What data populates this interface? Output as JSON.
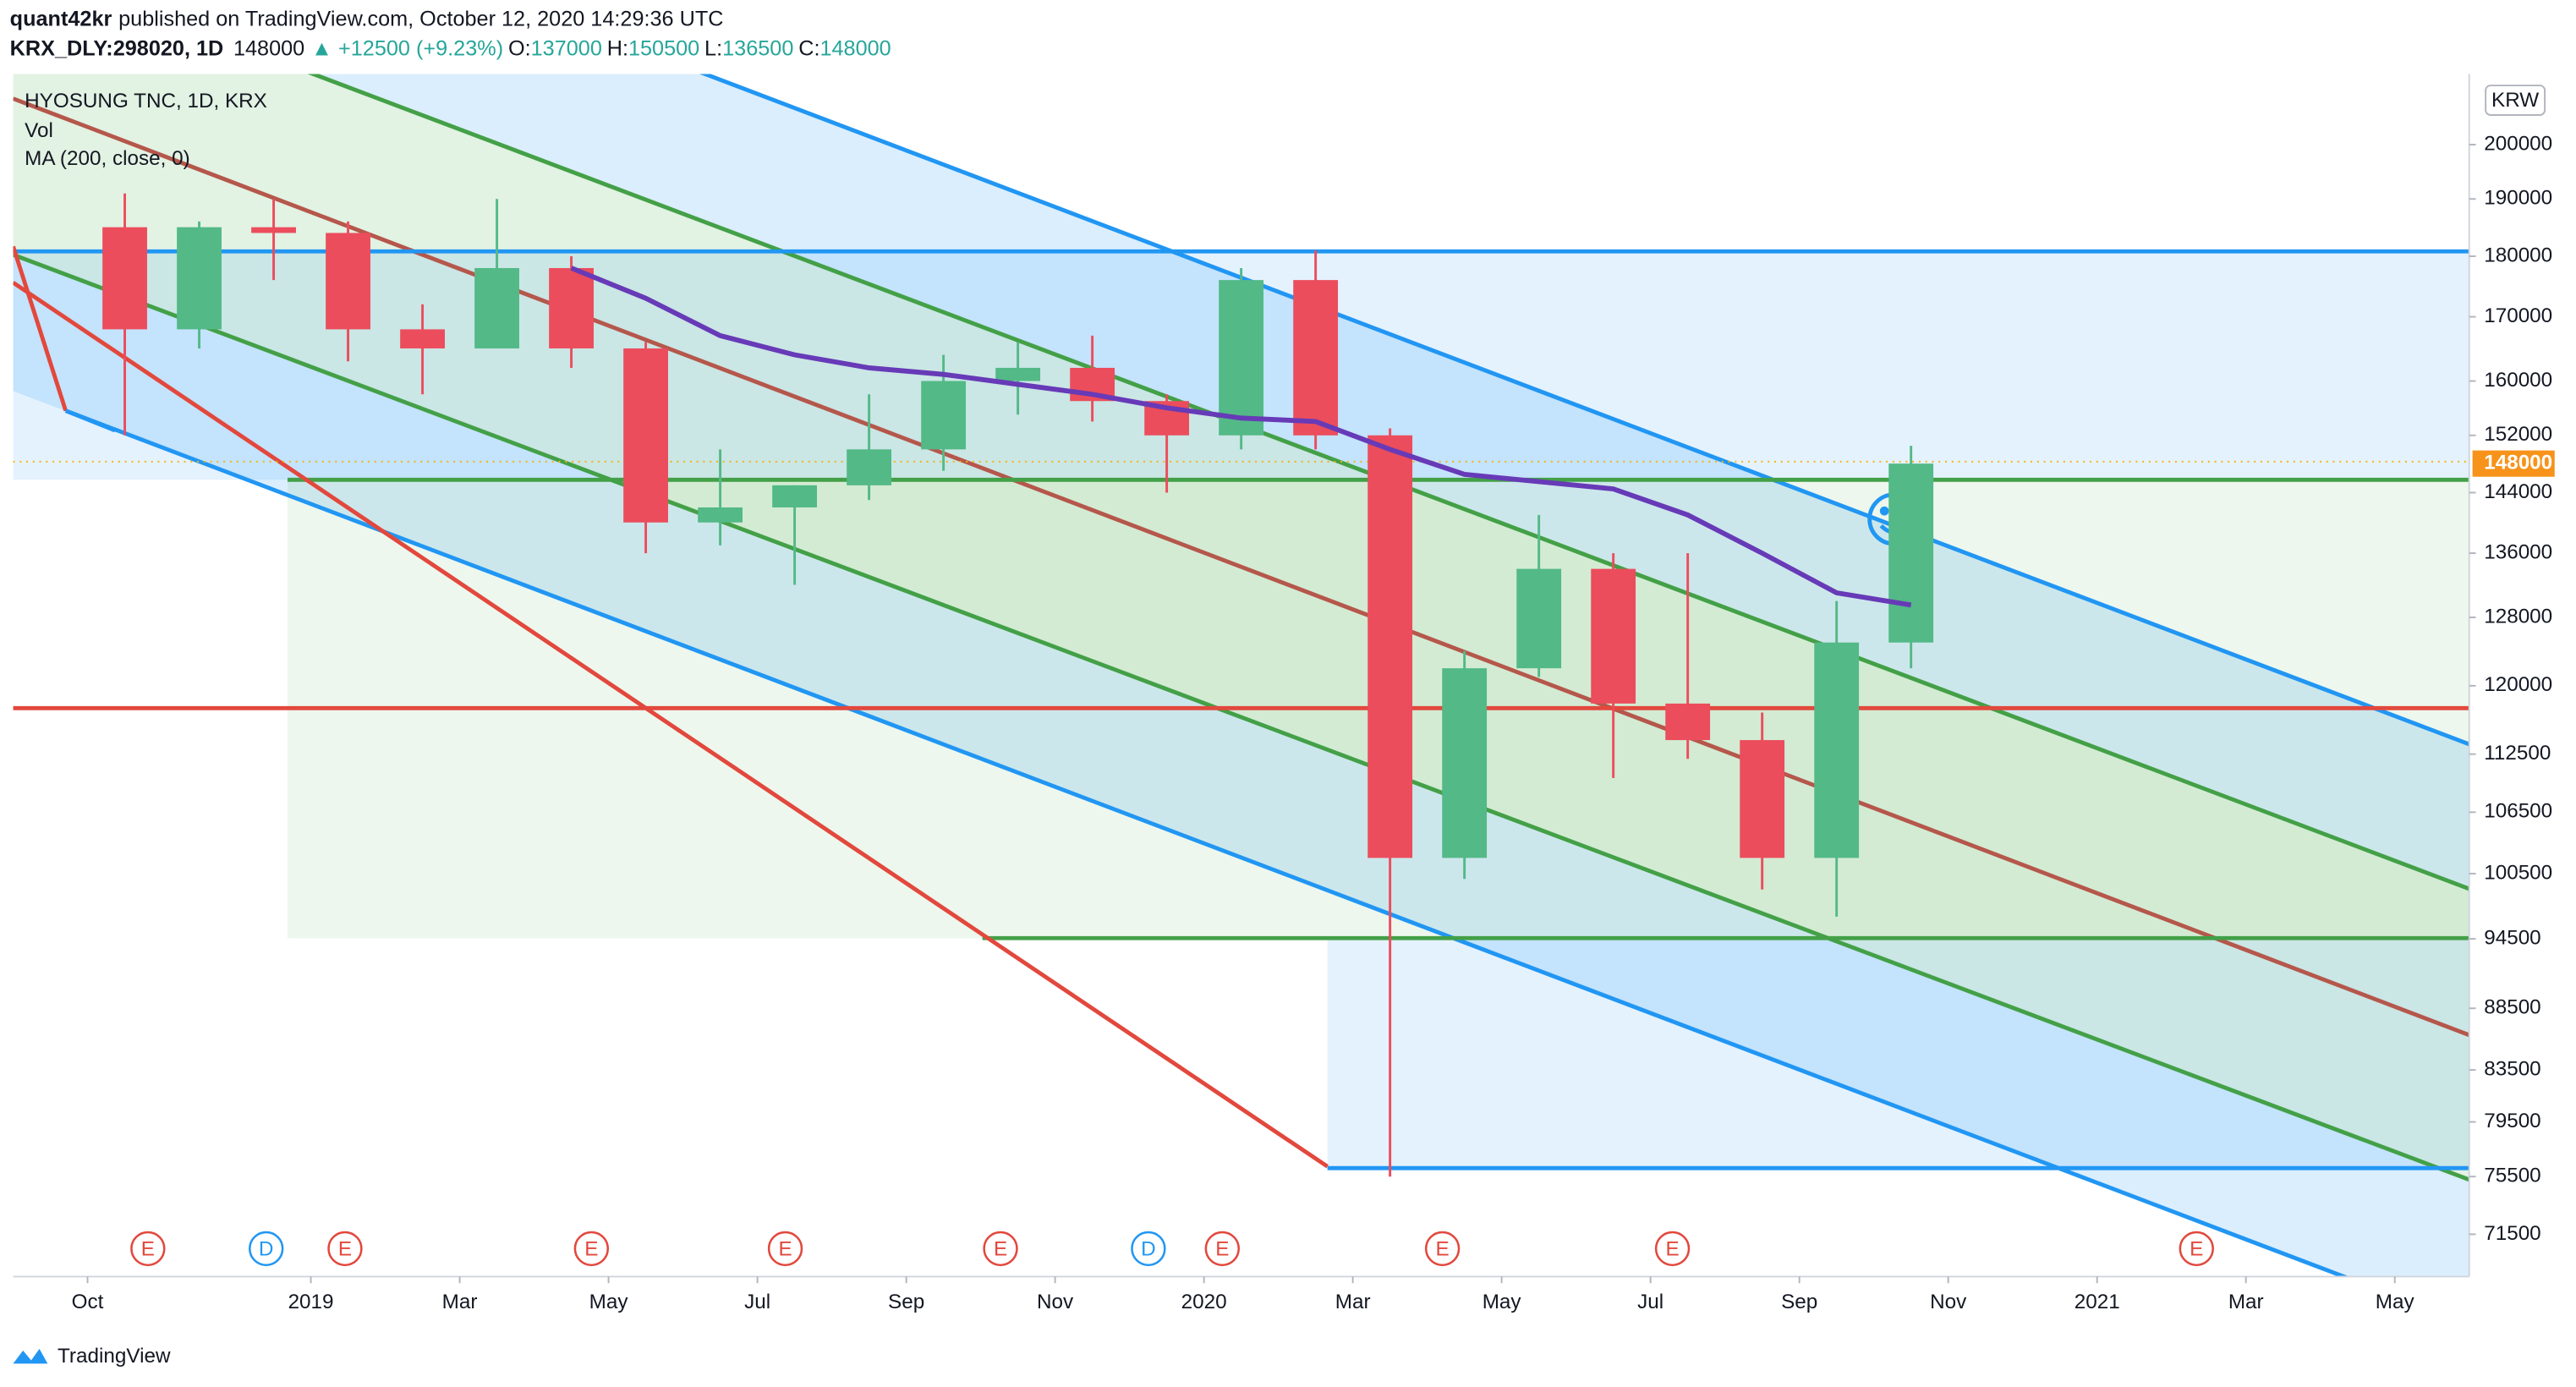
{
  "header": {
    "author": "quant42kr",
    "published": "published on TradingView.com, October 12, 2020 14:29:36 UTC"
  },
  "chart_data": {
    "type": "candlestick",
    "quote": {
      "symbol": "KRX_DLY:298020, 1D",
      "last": 148000,
      "change": "▲ +12500 (+9.23%)",
      "labels": [
        "O:",
        "H:",
        "L:",
        "C:"
      ],
      "values": [
        137000,
        150500,
        136500,
        148000
      ]
    },
    "volume_label": "Vol",
    "currency": "KRW",
    "x": [
      "2018-10",
      "2018-11",
      "2018-12",
      "2019-01",
      "2019-02",
      "2019-03",
      "2019-04",
      "2019-05",
      "2019-06",
      "2019-07",
      "2019-08",
      "2019-09",
      "2019-10",
      "2019-11",
      "2019-12",
      "2020-01",
      "2020-02",
      "2020-03",
      "2020-04",
      "2020-05",
      "2020-06",
      "2020-07",
      "2020-08",
      "2020-09",
      "2020-10"
    ],
    "series": [
      {
        "name": "HYOSUNG TNC, 1D, KRX",
        "up_color": "#53b987",
        "down_color": "#eb4d5c",
        "open": [
          185000,
          168000,
          185000,
          184000,
          168000,
          165000,
          178000,
          165000,
          140000,
          142000,
          145000,
          150000,
          160000,
          162000,
          157000,
          152000,
          176000,
          152000,
          102000,
          122000,
          134000,
          118000,
          114000,
          102000,
          125000
        ],
        "high": [
          191000,
          186000,
          190000,
          186000,
          172000,
          190000,
          180000,
          166000,
          150000,
          145000,
          158000,
          164000,
          166000,
          167000,
          158000,
          178000,
          181000,
          153000,
          124000,
          141000,
          136000,
          136000,
          117000,
          130000,
          150500
        ],
        "low": [
          152000,
          165000,
          176000,
          163000,
          158000,
          165000,
          162000,
          136000,
          137000,
          132000,
          143000,
          147000,
          155000,
          154000,
          144000,
          150000,
          150000,
          75500,
          100000,
          121000,
          110000,
          112000,
          99000,
          96500,
          122000
        ],
        "close": [
          168000,
          185000,
          184000,
          168000,
          165000,
          178000,
          165000,
          140000,
          142000,
          145000,
          150000,
          160000,
          162000,
          157000,
          152000,
          176000,
          152000,
          102000,
          122000,
          134000,
          118000,
          114000,
          102000,
          125000,
          148000
        ]
      },
      {
        "name": "MA (200, close, 0)",
        "color": "#673ab7",
        "values": [
          null,
          null,
          null,
          null,
          null,
          null,
          178000,
          173000,
          167000,
          164000,
          162000,
          161000,
          159500,
          158000,
          156000,
          154500,
          154000,
          150000,
          146500,
          145500,
          144500,
          141000,
          136000,
          131000,
          129500
        ]
      }
    ],
    "log_scale": true,
    "ylim": [
      68700,
      213800
    ],
    "yticks": [
      200000,
      190000,
      180000,
      170000,
      160000,
      152000,
      144000,
      136000,
      128000,
      120000,
      112500,
      106500,
      100500,
      94500,
      88500,
      83500,
      79500,
      75500,
      71500
    ],
    "price_label": 148000,
    "xlim": [
      "2018-09",
      "2021-06"
    ],
    "xticks": [
      {
        "value": "2018-10",
        "label": "Oct"
      },
      {
        "value": "2019-01",
        "label": "2019"
      },
      {
        "value": "2019-03",
        "label": "Mar"
      },
      {
        "value": "2019-05",
        "label": "May"
      },
      {
        "value": "2019-07",
        "label": "Jul"
      },
      {
        "value": "2019-09",
        "label": "Sep"
      },
      {
        "value": "2019-11",
        "label": "Nov"
      },
      {
        "value": "2020-01",
        "label": "2020"
      },
      {
        "value": "2020-03",
        "label": "Mar"
      },
      {
        "value": "2020-05",
        "label": "May"
      },
      {
        "value": "2020-07",
        "label": "Jul"
      },
      {
        "value": "2020-09",
        "label": "Sep"
      },
      {
        "value": "2020-11",
        "label": "Nov"
      },
      {
        "value": "2021-01",
        "label": "2021"
      },
      {
        "value": "2021-03",
        "label": "Mar"
      },
      {
        "value": "2021-05",
        "label": "May"
      }
    ],
    "events": [
      "E",
      "D",
      "E",
      "E",
      "E",
      "E",
      "D",
      "E",
      "E",
      "E",
      "E"
    ]
  },
  "footer": {
    "brand": "TradingView"
  }
}
